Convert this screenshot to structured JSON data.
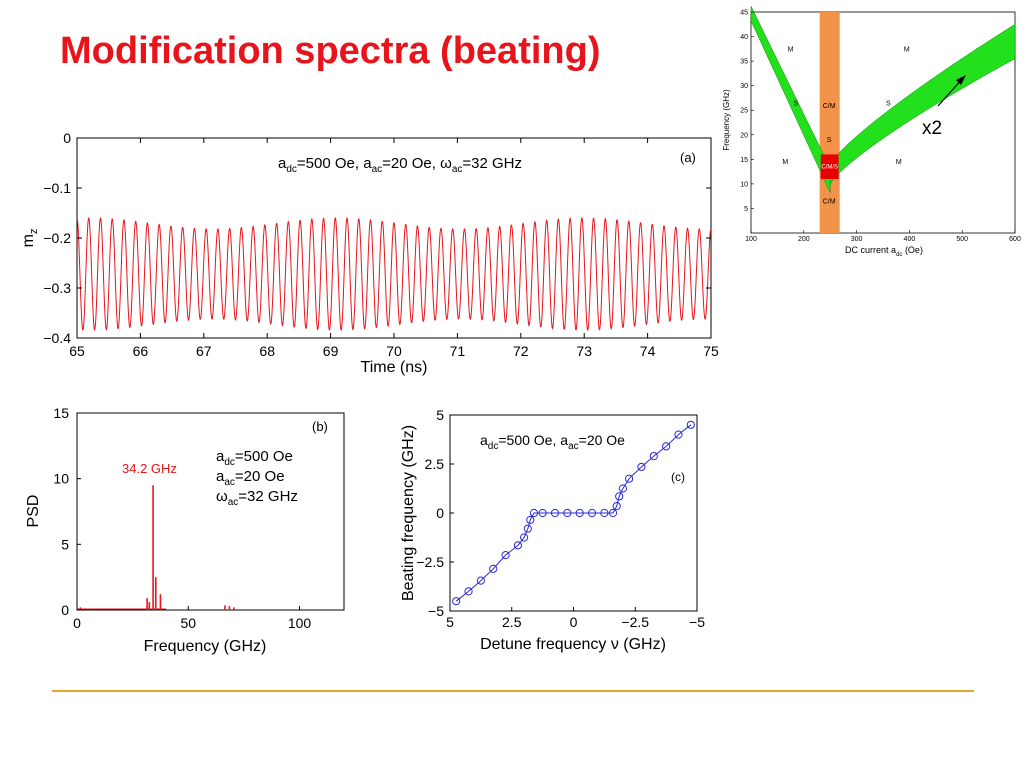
{
  "title": "Modification spectra (beating)",
  "colors": {
    "title": "#e8141b",
    "footer_rule": "#e6a531",
    "signal": "#e8141b",
    "beating": "#2a2ad4"
  },
  "chart_data": [
    {
      "id": "a",
      "type": "line",
      "panel_tag": "(a)",
      "annotation": {
        "a_dc": "500 Oe",
        "a_ac": "20 Oe",
        "omega_ac": "32 GHz"
      },
      "xlabel": "Time (ns)",
      "ylabel": "m",
      "ylabel_sub": "z",
      "xlim": [
        65,
        75
      ],
      "ylim": [
        -0.4,
        0
      ],
      "xticks": [
        65,
        66,
        67,
        68,
        69,
        70,
        71,
        72,
        73,
        74,
        75
      ],
      "yticks": [
        0,
        -0.1,
        -0.2,
        -0.3,
        -0.4
      ],
      "ytick_labels": [
        "0",
        "−0.1",
        "−0.2",
        "−0.3",
        "−0.4"
      ],
      "signal": {
        "carrier_ghz": 5.4,
        "envelope_period_ns": 3.9,
        "center": -0.272,
        "amp_max": 0.112,
        "amp_min": 0.09
      }
    },
    {
      "id": "b",
      "type": "bar",
      "panel_tag": "(b)",
      "peak_label": "34.2 GHz",
      "annotation": {
        "a_dc": "500 Oe",
        "a_ac": "20 Oe",
        "omega_ac": "32 GHz"
      },
      "xlabel": "Frequency (GHz)",
      "ylabel": "PSD",
      "xlim": [
        0,
        120
      ],
      "ylim": [
        0,
        15
      ],
      "xticks": [
        0,
        50,
        100
      ],
      "yticks": [
        0,
        5,
        10,
        15
      ],
      "x": [
        1.5,
        31.5,
        32.5,
        34.2,
        35.4,
        37.5,
        66.5,
        68.5,
        70.5
      ],
      "values": [
        0.2,
        0.9,
        0.6,
        9.5,
        2.5,
        1.2,
        0.35,
        0.3,
        0.2
      ]
    },
    {
      "id": "c",
      "type": "line",
      "panel_tag": "(c)",
      "annotation": {
        "a_dc": "500 Oe",
        "a_ac": "20 Oe"
      },
      "xlabel": "Detune frequency ν (GHz)",
      "ylabel": "Beating frequency (GHz)",
      "xlim": [
        5,
        -5
      ],
      "ylim": [
        -5,
        5
      ],
      "xticks": [
        5,
        2.5,
        0,
        -2.5,
        -5
      ],
      "xtick_labels": [
        "5",
        "2.5",
        "0",
        "−2.5",
        "−5"
      ],
      "yticks": [
        5,
        2.5,
        0,
        -2.5,
        -5
      ],
      "ytick_labels": [
        "5",
        "2.5",
        "0",
        "−2.5",
        "−5"
      ],
      "series": [
        {
          "x": [
            4.75,
            4.25,
            3.75,
            3.25,
            2.75,
            2.25,
            2.0,
            1.85,
            1.75,
            1.6,
            1.25,
            0.75,
            0.25,
            -0.25,
            -0.75,
            -1.25,
            -1.6,
            -1.75,
            -1.85,
            -2.0,
            -2.25,
            -2.75,
            -3.25,
            -3.75,
            -4.25,
            -4.75
          ],
          "y": [
            -4.5,
            -4.0,
            -3.45,
            -2.85,
            -2.15,
            -1.65,
            -1.25,
            -0.8,
            -0.35,
            0.0,
            0.0,
            0.0,
            0.0,
            0.0,
            0.0,
            0.0,
            0.0,
            0.35,
            0.85,
            1.25,
            1.75,
            2.35,
            2.9,
            3.4,
            4.0,
            4.5
          ]
        }
      ]
    },
    {
      "id": "d",
      "type": "area",
      "xlabel": "DC current a",
      "xlabel_sub": "dc",
      "xlabel_unit": "(Oe)",
      "ylabel": "Frequency (GHz)",
      "xlim": [
        100,
        600
      ],
      "ylim": [
        0,
        45
      ],
      "xticks": [
        100,
        200,
        300,
        400,
        500,
        600
      ],
      "yticks": [
        5,
        10,
        15,
        20,
        25,
        30,
        35,
        40,
        45
      ],
      "regions": [
        {
          "label": "M",
          "x": 175,
          "y": 37
        },
        {
          "label": "M",
          "x": 395,
          "y": 37
        },
        {
          "label": "S",
          "x": 185,
          "y": 26
        },
        {
          "label": "S",
          "x": 360,
          "y": 26
        },
        {
          "label": "C/M",
          "x": 248,
          "y": 25.5
        },
        {
          "label": "S",
          "x": 248,
          "y": 18.5
        },
        {
          "label": "M",
          "x": 165,
          "y": 14
        },
        {
          "label": "M",
          "x": 380,
          "y": 14
        },
        {
          "label": "C/M",
          "x": 248,
          "y": 6
        }
      ],
      "c_m_s_label": "C/M/S",
      "band_colors": {
        "orange": "#f3934a",
        "green": "#22e11c",
        "red": "#e60000"
      },
      "arrow_label": "x2"
    }
  ]
}
